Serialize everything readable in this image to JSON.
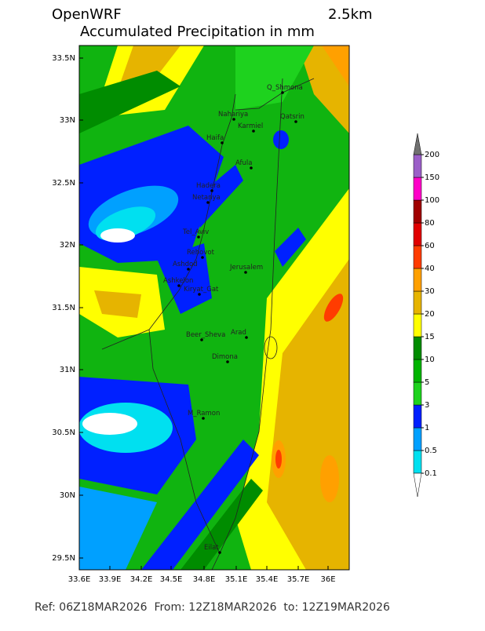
{
  "header": {
    "model": "OpenWRF",
    "resolution": "2.5km",
    "title": "Accumulated Precipitation in mm"
  },
  "map": {
    "lat_labels": [
      "33.5N",
      "33N",
      "32.5N",
      "32N",
      "31.5N",
      "31N",
      "30.5N",
      "30N",
      "29.5N"
    ],
    "lon_labels": [
      "33.6E",
      "33.9E",
      "34.2E",
      "34.5E",
      "34.8E",
      "35.1E",
      "35.4E",
      "35.7E",
      "36E"
    ],
    "cities": [
      "Q_Shmona",
      "Nahariya",
      "Qatsrin",
      "Karmiel",
      "Haifa",
      "Afula",
      "Hadera",
      "Netanya",
      "Tel_Aviv",
      "Rehovot",
      "Ashdod",
      "Jerusalem",
      "Ashkelon",
      "Kiryat_Gat",
      "Beer_Sheva",
      "Arad",
      "Dimona",
      "M_Ramon",
      "Eilat"
    ]
  },
  "colorbar": {
    "levels": [
      0.1,
      0.5,
      1,
      3,
      5,
      10,
      15,
      20,
      30,
      40,
      60,
      80,
      100,
      150,
      200
    ],
    "colors": [
      "#ffffff",
      "#00e0f0",
      "#00a0ff",
      "#0020ff",
      "#1ed21e",
      "#00b400",
      "#008c00",
      "#ffff00",
      "#e6b400",
      "#ffa000",
      "#ff3c00",
      "#e00000",
      "#a00000",
      "#ff00c8",
      "#9b5fc8",
      "#707070"
    ]
  },
  "footer": "Ref: 06Z18MAR2026  From: 12Z18MAR2026  to: 12Z19MAR2026"
}
